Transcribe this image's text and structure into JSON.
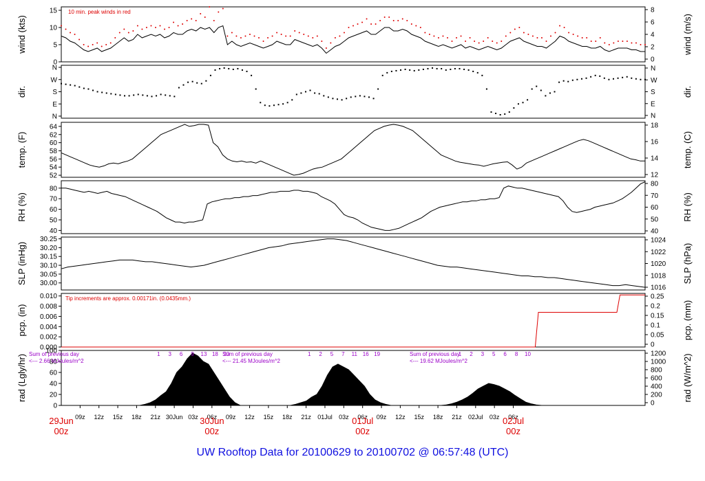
{
  "footer": {
    "title": "UW Rooftop Data for 20100629  to  20100702 @ 06:57:48  (UTC)"
  },
  "colors": {
    "series": "#000000",
    "peak": "#dd0000",
    "precip": "#dd0000",
    "annotation_red": "#dd0000",
    "annotation_purple": "#9b00c8",
    "footer": "#1010e0"
  },
  "chart_data": [
    {
      "id": "wind",
      "type": "line",
      "ylabel": "wind (kts)",
      "ylabel_right": "wind (m/s)",
      "ylim": [
        0,
        16
      ],
      "yticks": [
        "0",
        "5",
        "10",
        "15"
      ],
      "yticks_right": [
        "0",
        "2",
        "4",
        "6",
        "8"
      ],
      "annotation": "10 min. peak winds in red",
      "series": [
        {
          "values": [
            7.5,
            7,
            6,
            5.5,
            4.5,
            3.5,
            3,
            3.5,
            4,
            3,
            3.5,
            4,
            5,
            6,
            7,
            6,
            6.5,
            8,
            7,
            7.5,
            8,
            7.5,
            8,
            7,
            7.5,
            8.5,
            8,
            8,
            9,
            9.5,
            9,
            10,
            9.5,
            10,
            8.5,
            10,
            10.5,
            5,
            6,
            5,
            4.5,
            5,
            5.5,
            5,
            4.5,
            4,
            4.5,
            5,
            6,
            5.5,
            5,
            5,
            6.5,
            6,
            5.5,
            5,
            4.5,
            5,
            4,
            2.5,
            3.5,
            4.5,
            5,
            6,
            7,
            7.5,
            8,
            8.5,
            9,
            8,
            8,
            9,
            10,
            10,
            9,
            9,
            9.5,
            9,
            8,
            7.5,
            7,
            6,
            5.5,
            5,
            4.5,
            5,
            4.5,
            4,
            4.5,
            5,
            4,
            4.5,
            4,
            3.5,
            4,
            4.5,
            4,
            3.5,
            4,
            5,
            6,
            6.5,
            7,
            6,
            5.5,
            5,
            4.5,
            4.5,
            4,
            5,
            6,
            7.5,
            7,
            6,
            5.5,
            5,
            4.5,
            4.5,
            4,
            4,
            4.5,
            3.5,
            3,
            3.5,
            4,
            4,
            4,
            3.5,
            3.5,
            3,
            3
          ]
        },
        {
          "name": "10 min. peak winds",
          "values": [
            10.5,
            9.5,
            8.5,
            8,
            6.5,
            5,
            4.5,
            5,
            5.5,
            4.5,
            5,
            5.5,
            7,
            8.5,
            9.5,
            8.5,
            9,
            10.5,
            9.5,
            10,
            10.5,
            10,
            10.5,
            9.5,
            10,
            11.5,
            10.5,
            11,
            12,
            12.5,
            12,
            14,
            13,
            16,
            12,
            14.5,
            15.5,
            7.5,
            8.5,
            7.5,
            7,
            7.5,
            8,
            7.5,
            7,
            6,
            7,
            7.5,
            8.5,
            8,
            7.5,
            7.5,
            9,
            8.5,
            8,
            7.5,
            7,
            7.5,
            6,
            4,
            5.5,
            7,
            7.5,
            8.5,
            10,
            10.5,
            11,
            11.5,
            12.5,
            11,
            11,
            12,
            13,
            13,
            12,
            12,
            12.5,
            12,
            11,
            10.5,
            10,
            8.5,
            8,
            7.5,
            7,
            7.5,
            7,
            6,
            7,
            7.5,
            6,
            7,
            6,
            5.5,
            6,
            7,
            6,
            5.5,
            6,
            7.5,
            8.5,
            9.5,
            10,
            8.5,
            8,
            7.5,
            7,
            7,
            6,
            7.5,
            8.5,
            10.5,
            10,
            8.5,
            8,
            7.5,
            7,
            7,
            6,
            6,
            7,
            5.5,
            5,
            5.5,
            6,
            6,
            6,
            5.5,
            5.5,
            5,
            5
          ]
        }
      ]
    },
    {
      "id": "dir",
      "type": "scatter",
      "ylabel": "dir.",
      "ylabel_right": "dir.",
      "ylim": [
        0,
        360
      ],
      "yticks": [
        "N",
        "E",
        "S",
        "W",
        "N"
      ],
      "yticks_right": [
        "N",
        "E",
        "S",
        "W",
        "N"
      ],
      "series": [
        {
          "values": [
            240,
            235,
            230,
            225,
            215,
            205,
            200,
            190,
            180,
            175,
            170,
            165,
            160,
            155,
            150,
            150,
            155,
            160,
            155,
            150,
            145,
            150,
            160,
            155,
            150,
            145,
            210,
            230,
            250,
            255,
            245,
            240,
            260,
            300,
            340,
            350,
            355,
            350,
            345,
            350,
            340,
            330,
            300,
            200,
            100,
            80,
            75,
            80,
            85,
            90,
            100,
            120,
            160,
            170,
            180,
            190,
            170,
            165,
            150,
            140,
            130,
            125,
            120,
            130,
            140,
            145,
            150,
            145,
            140,
            130,
            200,
            300,
            320,
            330,
            335,
            340,
            345,
            340,
            335,
            340,
            345,
            350,
            355,
            350,
            350,
            340,
            345,
            350,
            350,
            345,
            340,
            330,
            320,
            300,
            200,
            30,
            20,
            10,
            15,
            30,
            60,
            90,
            100,
            120,
            200,
            220,
            190,
            150,
            170,
            180,
            250,
            260,
            255,
            265,
            270,
            275,
            280,
            290,
            300,
            295,
            280,
            270,
            275,
            280,
            285,
            290,
            280,
            275,
            270,
            270
          ]
        }
      ]
    },
    {
      "id": "temp",
      "type": "line",
      "ylabel": "temp. (F)",
      "ylabel_right": "temp. (C)",
      "ylim": [
        51.5,
        65
      ],
      "yticks": [
        "52",
        "54",
        "56",
        "58",
        "60",
        "62",
        "64"
      ],
      "yticks_right": [
        "12",
        "14",
        "16",
        "18"
      ],
      "series": [
        {
          "values": [
            57.5,
            57,
            56.5,
            56,
            55.5,
            55,
            54.5,
            54.2,
            54,
            54.3,
            54.8,
            55,
            54.8,
            55.2,
            55.5,
            56,
            57,
            58,
            59,
            60,
            61,
            62,
            62.5,
            63,
            63.5,
            64,
            64.5,
            64,
            64.2,
            64.5,
            64.5,
            64.3,
            60,
            59,
            57,
            56,
            55.5,
            55.3,
            55.5,
            55.2,
            55.3,
            55,
            55.5,
            55,
            54.5,
            54,
            53.5,
            53,
            52.5,
            52,
            52.2,
            52.5,
            53,
            53.5,
            53.8,
            54,
            54.5,
            55,
            55.5,
            56,
            57,
            58,
            59,
            60,
            61,
            62,
            63,
            63.5,
            64,
            64.3,
            64.5,
            64.3,
            64,
            63.5,
            63,
            62,
            61,
            60,
            59,
            58,
            57,
            56.5,
            56,
            55.5,
            55.2,
            55,
            54.8,
            54.6,
            54.5,
            54.2,
            54.5,
            54.8,
            55,
            55.2,
            55.3,
            54.5,
            53.5,
            54,
            55,
            55.5,
            56,
            56.5,
            57,
            57.5,
            58,
            58.5,
            59,
            59.5,
            60,
            60.5,
            60.8,
            60.5,
            60,
            59.5,
            59,
            58.5,
            58,
            57.5,
            57,
            56.5,
            56,
            55.8,
            55.5,
            55.5
          ]
        }
      ]
    },
    {
      "id": "rh",
      "type": "line",
      "ylabel": "RH (%)",
      "ylabel_right": "RH (%)",
      "ylim": [
        37,
        87
      ],
      "yticks": [
        "40",
        "50",
        "60",
        "70",
        "80"
      ],
      "yticks_right": [
        "40",
        "50",
        "60",
        "70",
        "80"
      ],
      "series": [
        {
          "values": [
            80,
            80,
            79,
            78,
            77,
            76,
            77,
            76,
            75,
            76,
            77,
            75,
            74,
            73,
            72,
            70,
            68,
            66,
            64,
            62,
            60,
            58,
            55,
            52,
            50,
            48,
            48,
            47,
            48,
            48,
            49,
            50,
            65,
            67,
            68,
            69,
            70,
            70,
            71,
            71,
            72,
            72,
            73,
            73,
            74,
            75,
            76,
            76,
            77,
            77,
            77,
            78,
            78,
            77,
            77,
            76,
            75,
            72,
            70,
            68,
            65,
            60,
            55,
            53,
            52,
            50,
            47,
            45,
            43,
            42,
            41,
            40,
            40,
            41,
            42,
            44,
            46,
            48,
            50,
            52,
            55,
            58,
            60,
            62,
            63,
            64,
            65,
            66,
            67,
            67,
            68,
            68,
            69,
            69,
            70,
            70,
            71,
            80,
            82,
            81,
            80,
            80,
            79,
            78,
            77,
            76,
            75,
            74,
            73,
            72,
            68,
            62,
            58,
            57,
            58,
            59,
            60,
            62,
            63,
            64,
            65,
            66,
            68,
            70,
            73,
            76,
            80,
            84,
            86
          ]
        }
      ]
    },
    {
      "id": "slp",
      "type": "line",
      "ylabel": "SLP (inHg)",
      "ylabel_right": "SLP (hPa)",
      "ylim": [
        29.96,
        30.26
      ],
      "yticks": [
        "30.00",
        "30.05",
        "30.10",
        "30.15",
        "30.20",
        "30.25"
      ],
      "yticks_right": [
        "1016",
        "1018",
        "1020",
        "1022",
        "1024"
      ],
      "series": [
        {
          "values": [
            30.08,
            30.09,
            30.095,
            30.1,
            30.105,
            30.11,
            30.115,
            30.12,
            30.125,
            30.13,
            30.13,
            30.13,
            30.125,
            30.12,
            30.12,
            30.115,
            30.11,
            30.105,
            30.1,
            30.095,
            30.09,
            30.095,
            30.1,
            30.11,
            30.12,
            30.13,
            30.14,
            30.15,
            30.16,
            30.17,
            30.18,
            30.19,
            30.2,
            30.205,
            30.21,
            30.22,
            30.225,
            30.23,
            30.235,
            30.24,
            30.245,
            30.25,
            30.25,
            30.245,
            30.24,
            30.23,
            30.22,
            30.21,
            30.2,
            30.19,
            30.18,
            30.17,
            30.16,
            30.15,
            30.14,
            30.13,
            30.12,
            30.11,
            30.1,
            30.095,
            30.09,
            30.09,
            30.085,
            30.08,
            30.075,
            30.07,
            30.065,
            30.06,
            30.055,
            30.05,
            30.045,
            30.04,
            30.04,
            30.035,
            30.035,
            30.03,
            30.03,
            30.025,
            30.02,
            30.015,
            30.01,
            30.005,
            30,
            29.995,
            29.99,
            29.985,
            29.985,
            29.99,
            29.985,
            29.98,
            29.975
          ]
        }
      ]
    },
    {
      "id": "pcp",
      "type": "line",
      "ylabel": "pcp. (in)",
      "ylabel_right": "pcp. (mm)",
      "ylim": [
        0,
        0.0105
      ],
      "yticks": [
        "0.000",
        "0.002",
        "0.004",
        "0.006",
        "0.008",
        "0.010"
      ],
      "yticks_right": [
        "0",
        "0.05",
        "0.1",
        "0.15",
        "0.2",
        "0.25"
      ],
      "annotation": "Tip increments are approx. 0.00171in. (0.0435mm.)",
      "step_hours": [
        0,
        75.5,
        76,
        88.5,
        89
      ],
      "step_values": [
        0,
        0,
        0.0068,
        0.0068,
        0.0102
      ]
    },
    {
      "id": "rad",
      "type": "area",
      "ylabel": "rad (Lgly/hr)",
      "ylabel_right": "rad (W/m^2)",
      "ylim": [
        0,
        100
      ],
      "yticks": [
        "0",
        "20",
        "40",
        "60",
        "80",
        "100"
      ],
      "yticks_right": [
        "0",
        "200",
        "400",
        "600",
        "800",
        "1000",
        "1200"
      ],
      "day_sums": [
        {
          "label1": "Sum of previous day",
          "label2": "<--- 2.66 MJoules/m^2"
        },
        {
          "label1": "Sum of previous day",
          "label2": "<--- 21.45 MJoules/m^2"
        },
        {
          "label1": "Sum of previous day",
          "label2": "<--- 19.62 MJoules/m^2"
        }
      ],
      "peak_labels": [
        [
          "1",
          "3",
          "6",
          "9",
          "13",
          "18",
          "20"
        ],
        [
          "1",
          "2",
          "5",
          "7",
          "11",
          "16",
          "19"
        ],
        [
          "1",
          "2",
          "3",
          "5",
          "6",
          "8",
          "10"
        ]
      ],
      "days": [
        {
          "start_hour": 12.5,
          "end_hour": 28.5,
          "values": [
            0,
            2,
            5,
            10,
            18,
            25,
            40,
            60,
            70,
            85,
            95,
            90,
            80,
            75,
            60,
            45,
            30,
            15,
            5,
            0
          ]
        },
        {
          "start_hour": 36.5,
          "end_hour": 52.5,
          "values": [
            0,
            2,
            5,
            8,
            15,
            20,
            35,
            55,
            70,
            75,
            70,
            65,
            55,
            45,
            35,
            20,
            10,
            5,
            2,
            0
          ]
        },
        {
          "start_hour": 60.5,
          "end_hour": 76.5,
          "values": [
            0,
            1,
            3,
            6,
            10,
            15,
            22,
            30,
            35,
            40,
            38,
            35,
            30,
            25,
            18,
            12,
            6,
            3,
            1,
            0
          ]
        }
      ]
    }
  ],
  "x_axis": {
    "hour_labels": [
      "09z",
      "12z",
      "15z",
      "18z",
      "21z",
      "30Jun",
      "03z",
      "06z",
      "09z",
      "12z",
      "15z",
      "18z",
      "21z",
      "01Jul",
      "03z",
      "06z",
      "09z",
      "12z",
      "15z",
      "18z",
      "21z",
      "02Jul",
      "03z",
      "06z"
    ],
    "day_marks": [
      {
        "label": "29Jun",
        "sub": "00z"
      },
      {
        "label": "30Jun",
        "sub": "00z"
      },
      {
        "label": "01Jul",
        "sub": "00z"
      },
      {
        "label": "02Jul",
        "sub": "00z"
      }
    ],
    "hours_range": [
      0,
      93
    ]
  }
}
